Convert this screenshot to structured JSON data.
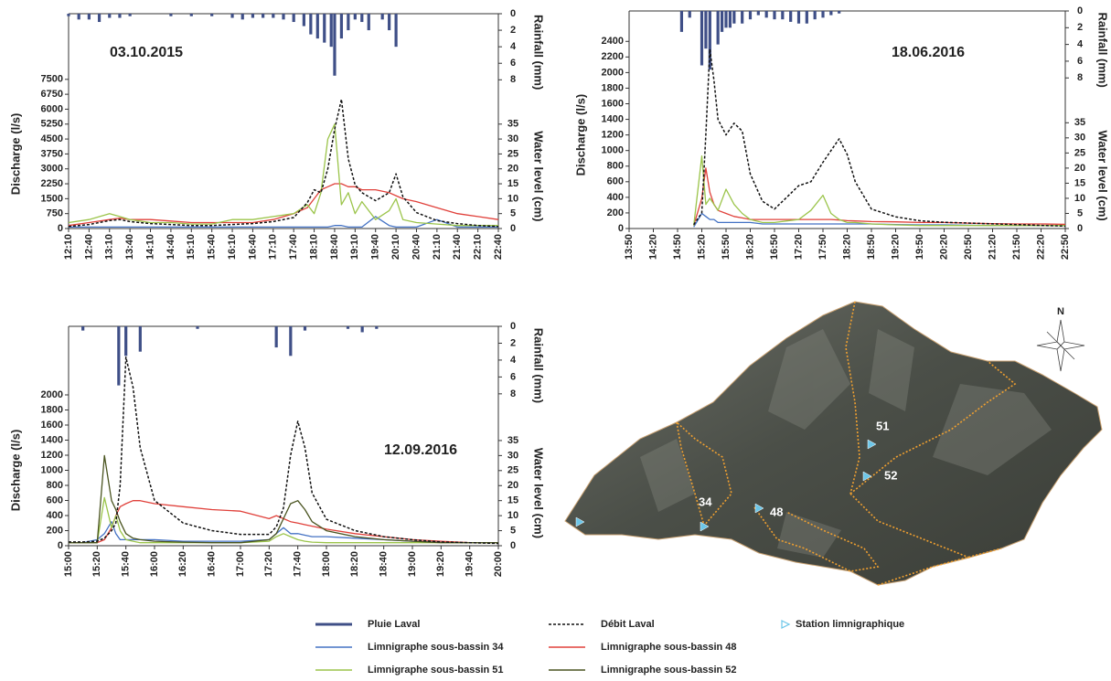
{
  "chart_data": [
    {
      "type": "line",
      "title": "03.10.2015",
      "ylabel": "Discharge (l/s)",
      "y2label": "Water level (cm)",
      "y3label": "Rainfall (mm)",
      "xlim": [
        "12:10",
        "22:40"
      ],
      "xticks": [
        "12:10",
        "12:40",
        "13:10",
        "13:40",
        "14:10",
        "14:40",
        "15:10",
        "15:40",
        "16:10",
        "16:40",
        "17:10",
        "17:40",
        "18:10",
        "18:40",
        "19:10",
        "19:40",
        "20:10",
        "20:40",
        "21:10",
        "21:40",
        "22:10",
        "22:40"
      ],
      "ylim": [
        0,
        10800
      ],
      "yticks": [
        0,
        750,
        1500,
        2250,
        3000,
        3750,
        4500,
        5250,
        6000,
        6750,
        7500
      ],
      "y2lim": [
        0,
        72
      ],
      "y2ticks": [
        0,
        5,
        10,
        15,
        20,
        25,
        30,
        35
      ],
      "y3lim": [
        0,
        26
      ],
      "y3ticks": [
        0,
        2,
        4,
        6,
        8
      ],
      "y3_inverted": true,
      "x": [
        "12:10",
        "12:40",
        "13:10",
        "13:25",
        "13:40",
        "14:10",
        "14:40",
        "15:10",
        "15:40",
        "16:10",
        "16:40",
        "17:10",
        "17:40",
        "18:00",
        "18:10",
        "18:20",
        "18:30",
        "18:40",
        "18:50",
        "19:00",
        "19:10",
        "19:20",
        "19:40",
        "20:00",
        "20:10",
        "20:20",
        "20:40",
        "21:10",
        "21:40",
        "22:10",
        "22:40"
      ],
      "rainfall": {
        "color": "#3f4f87",
        "x": [
          "12:10",
          "12:25",
          "12:40",
          "12:55",
          "13:10",
          "13:25",
          "13:40",
          "14:40",
          "15:10",
          "15:40",
          "16:10",
          "16:25",
          "16:40",
          "16:55",
          "17:10",
          "17:25",
          "17:40",
          "17:55",
          "18:05",
          "18:15",
          "18:25",
          "18:35",
          "18:40",
          "18:50",
          "19:00",
          "19:10",
          "19:20",
          "19:30",
          "19:50",
          "20:00",
          "20:10"
        ],
        "values": [
          0.3,
          0.7,
          0.7,
          1,
          0.5,
          0.5,
          0.3,
          0.3,
          0.3,
          0.3,
          0.5,
          0.7,
          0.5,
          0.5,
          0.5,
          0.7,
          1,
          1.5,
          2.5,
          3,
          3.5,
          4,
          7.5,
          3,
          2,
          0.7,
          1,
          2,
          0.7,
          2,
          4
        ]
      },
      "series": [
        {
          "color": "#4472c4",
          "axis": "y2",
          "values": [
            0.5,
            0.5,
            0.5,
            0.5,
            0.5,
            0.5,
            0.5,
            0.5,
            0.5,
            0.5,
            0.5,
            0.5,
            0.5,
            0.5,
            0.5,
            0.5,
            0.5,
            1,
            1,
            0.5,
            0.5,
            0.5,
            4,
            1,
            0.5,
            0.5,
            0.5,
            3,
            0.5,
            0.5,
            0.5
          ]
        },
        {
          "color": "#e0403a",
          "axis": "y2",
          "values": [
            1,
            2,
            3,
            3.5,
            3,
            3,
            2.5,
            2,
            2,
            2,
            2,
            3,
            5,
            7,
            10,
            13,
            14,
            15,
            15,
            14,
            14,
            13,
            13,
            12,
            11,
            10,
            9,
            7,
            5,
            4,
            3
          ]
        },
        {
          "color": "#9bc44a",
          "axis": "y2",
          "values": [
            2,
            3,
            5,
            4,
            3,
            2,
            2,
            1.5,
            1.5,
            3,
            3,
            4,
            5,
            8,
            5,
            12,
            30,
            35,
            8,
            12,
            5,
            9,
            3,
            6,
            10,
            3,
            2,
            1.5,
            1,
            1,
            1
          ]
        },
        {
          "color": "#111111",
          "axis": "y",
          "linestyle": "dashed",
          "values": [
            100,
            200,
            400,
            450,
            350,
            250,
            200,
            150,
            150,
            200,
            250,
            350,
            550,
            1300,
            1950,
            1800,
            3000,
            5000,
            6500,
            3500,
            2200,
            1800,
            1400,
            1800,
            2750,
            1600,
            800,
            400,
            250,
            150,
            100
          ]
        }
      ]
    },
    {
      "type": "line",
      "title": "18.06.2016",
      "ylabel": "Discharge (l/s)",
      "y2label": "Water level (cm)",
      "y3label": "Rainfall (mm)",
      "xlim": [
        "13:50",
        "22:50"
      ],
      "xticks": [
        "13:50",
        "14:20",
        "14:50",
        "15:20",
        "15:50",
        "16:20",
        "16:50",
        "17:20",
        "17:50",
        "18:20",
        "18:50",
        "19:20",
        "19:50",
        "20:20",
        "20:50",
        "21:20",
        "21:50",
        "22:20",
        "22:50"
      ],
      "ylim": [
        0,
        2790
      ],
      "yticks": [
        0,
        200,
        400,
        600,
        800,
        1000,
        1200,
        1400,
        1600,
        1800,
        2000,
        2200,
        2400
      ],
      "y2lim": [
        0,
        72
      ],
      "y2ticks": [
        0,
        5,
        10,
        15,
        20,
        25,
        30,
        35
      ],
      "y3lim": [
        0,
        26
      ],
      "y3ticks": [
        0,
        2,
        4,
        6,
        8
      ],
      "y3_inverted": true,
      "x": [
        "13:50",
        "14:20",
        "14:50",
        "15:10",
        "15:20",
        "15:25",
        "15:30",
        "15:35",
        "15:40",
        "15:50",
        "16:00",
        "16:10",
        "16:20",
        "16:35",
        "16:50",
        "17:05",
        "17:20",
        "17:35",
        "17:50",
        "18:00",
        "18:10",
        "18:20",
        "18:30",
        "18:50",
        "19:20",
        "19:50",
        "20:20",
        "20:50",
        "21:20",
        "21:50",
        "22:20",
        "22:50"
      ],
      "rainfall": {
        "color": "#3f4f87",
        "x": [
          "14:55",
          "15:05",
          "15:20",
          "15:25",
          "15:30",
          "15:40",
          "15:45",
          "15:50",
          "15:55",
          "16:00",
          "16:10",
          "16:20",
          "16:30",
          "16:40",
          "16:50",
          "17:00",
          "17:10",
          "17:20",
          "17:30",
          "17:40",
          "17:50",
          "18:00",
          "18:10"
        ],
        "values": [
          2.5,
          0.8,
          6.5,
          4.5,
          7,
          4,
          2.5,
          2,
          2,
          1.5,
          1.5,
          1,
          0.5,
          0.8,
          1,
          1,
          1.3,
          1.5,
          1.5,
          1,
          0.8,
          0.5,
          0.3
        ]
      },
      "series": [
        {
          "color": "#4472c4",
          "axis": "y2",
          "values": [
            null,
            null,
            null,
            0.5,
            5,
            4,
            3,
            3,
            2,
            2,
            2,
            2,
            2,
            1.5,
            1.5,
            1.5,
            1.5,
            1.5,
            1.5,
            1.5,
            1.5,
            1.5,
            1.5,
            1.5,
            1.3,
            1.2,
            1.2,
            1.1,
            1,
            1,
            1,
            1
          ]
        },
        {
          "color": "#e0403a",
          "axis": "y2",
          "values": [
            null,
            null,
            null,
            1,
            10,
            20,
            12,
            8,
            6,
            5,
            4,
            3.5,
            3,
            3,
            3,
            3,
            3,
            3,
            3,
            3,
            2.8,
            2.6,
            2.5,
            2.3,
            2.2,
            2,
            2,
            1.8,
            1.6,
            1.5,
            1.5,
            1.4
          ]
        },
        {
          "color": "#9bc44a",
          "axis": "y2",
          "values": [
            null,
            null,
            null,
            1,
            24,
            8,
            10,
            8,
            6,
            13,
            8,
            5,
            3,
            2,
            2,
            2.5,
            3,
            6,
            11,
            5,
            3,
            2,
            2,
            1.5,
            1.2,
            1,
            1,
            1,
            1,
            1,
            1,
            1
          ]
        },
        {
          "color": "#111111",
          "axis": "y",
          "linestyle": "dashed",
          "values": [
            null,
            null,
            null,
            50,
            200,
            1200,
            2300,
            1900,
            1400,
            1200,
            1350,
            1250,
            700,
            350,
            250,
            400,
            550,
            600,
            850,
            1000,
            1150,
            950,
            600,
            250,
            150,
            100,
            80,
            70,
            60,
            50,
            40,
            30
          ]
        }
      ]
    },
    {
      "type": "line",
      "title": "12.09.2016",
      "ylabel": "Discharge (l/s)",
      "y2label": "Water level (cm)",
      "y3label": "Rainfall (mm)",
      "xlim": [
        "15:00",
        "20:00"
      ],
      "xticks": [
        "15:00",
        "15:20",
        "15:40",
        "16:00",
        "16:20",
        "16:40",
        "17:00",
        "17:20",
        "17:40",
        "18:00",
        "18:20",
        "18:40",
        "19:00",
        "19:20",
        "19:40",
        "20:00"
      ],
      "ylim": [
        0,
        2909
      ],
      "yticks": [
        0,
        200,
        400,
        600,
        800,
        1000,
        1200,
        1400,
        1600,
        1800,
        2000
      ],
      "y2lim": [
        0,
        73
      ],
      "y2ticks": [
        0,
        5,
        10,
        15,
        20,
        25,
        30,
        35
      ],
      "y3lim": [
        0,
        26
      ],
      "y3ticks": [
        0,
        2,
        4,
        6,
        8
      ],
      "y3_inverted": true,
      "x": [
        "15:00",
        "15:10",
        "15:20",
        "15:25",
        "15:30",
        "15:33",
        "15:36",
        "15:40",
        "15:45",
        "15:50",
        "16:00",
        "16:20",
        "16:40",
        "17:00",
        "17:20",
        "17:25",
        "17:30",
        "17:35",
        "17:40",
        "17:45",
        "17:50",
        "18:00",
        "18:20",
        "18:40",
        "19:00",
        "19:20",
        "19:40",
        "20:00"
      ],
      "rainfall": {
        "name": "Pluie Laval",
        "color": "#3f4f87",
        "x": [
          "15:10",
          "15:35",
          "15:40",
          "15:50",
          "16:30",
          "17:25",
          "17:35",
          "17:45",
          "18:15",
          "18:25",
          "18:35"
        ],
        "values": [
          0.5,
          7,
          3.5,
          3,
          0.3,
          2.5,
          3.5,
          0.5,
          0.3,
          0.7,
          0.3
        ]
      },
      "series": [
        {
          "name": "Limnigraphe sous-bassin 34",
          "color": "#4472c4",
          "axis": "y2",
          "values": [
            1,
            1,
            2,
            4,
            8,
            4,
            2,
            2,
            2,
            2,
            2,
            1.5,
            1.5,
            1.5,
            2,
            4,
            6,
            4,
            4,
            3.5,
            3,
            3,
            2.5,
            2,
            1.5,
            1.2,
            1,
            1
          ]
        },
        {
          "name": "Limnigraphe sous-bassin 48",
          "color": "#e0403a",
          "axis": "y2",
          "values": [
            1,
            1,
            1,
            2,
            6,
            10,
            13,
            14,
            15,
            15,
            14,
            13,
            12,
            11.5,
            9,
            10,
            9,
            8,
            7.5,
            7,
            6.5,
            5.5,
            4,
            3,
            2,
            1.5,
            1,
            1
          ]
        },
        {
          "name": "Limnigraphe sous-bassin 51",
          "color": "#9bc44a",
          "axis": "y2",
          "values": [
            1,
            1,
            1,
            16,
            6,
            10,
            5,
            2,
            1.5,
            1,
            1,
            1,
            1,
            1,
            1.5,
            3,
            4,
            3,
            2,
            1.5,
            1.2,
            1,
            1,
            1,
            1,
            1,
            1,
            1
          ]
        },
        {
          "name": "Limnigraphe sous-bassin 52",
          "color": "#4a5420",
          "axis": "y2",
          "values": [
            1,
            1,
            1,
            30,
            15,
            12,
            8,
            4,
            2.5,
            2,
            1.5,
            1.2,
            1,
            1,
            2,
            4,
            9,
            14,
            15,
            12,
            8,
            5,
            3,
            2,
            1.5,
            1,
            1,
            1
          ]
        },
        {
          "name": "Débit Laval",
          "color": "#111111",
          "axis": "y",
          "linestyle": "dashed",
          "values": [
            50,
            50,
            60,
            100,
            200,
            300,
            800,
            2500,
            2100,
            1300,
            600,
            300,
            200,
            150,
            150,
            250,
            500,
            1200,
            1650,
            1300,
            700,
            350,
            200,
            120,
            80,
            50,
            40,
            30
          ]
        }
      ]
    }
  ],
  "map": {
    "north": "N",
    "legend": "Station limnigraphique",
    "station_color": "#6cc6e8",
    "stations": [
      {
        "label": "51"
      },
      {
        "label": "52"
      },
      {
        "label": "34"
      },
      {
        "label": "48"
      }
    ]
  }
}
